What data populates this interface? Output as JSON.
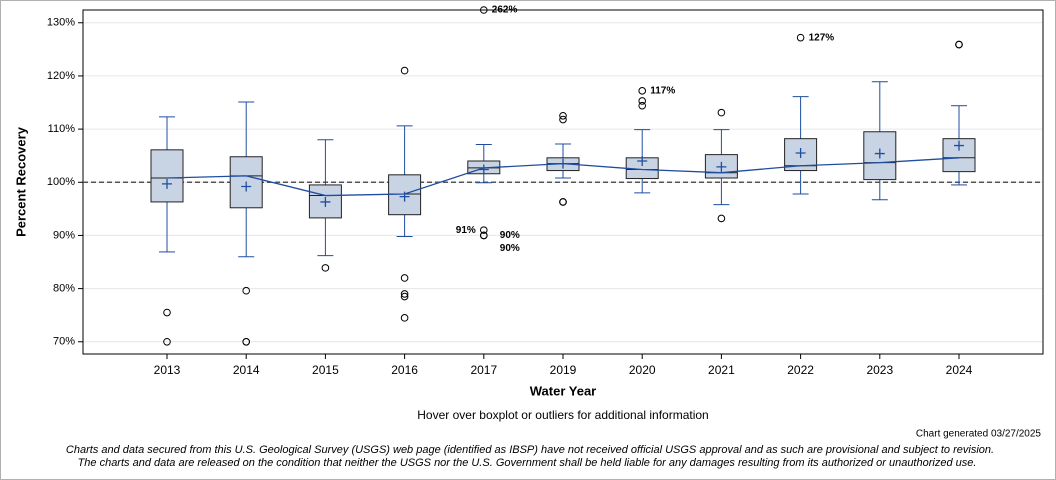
{
  "chart_data": {
    "type": "box",
    "y_label": "Percent Recovery",
    "x_label": "Water Year",
    "hover_note": "Hover over boxplot or outliers for additional information",
    "generated": "Chart generated 03/27/2025",
    "disclaimer": [
      "Charts and data secured from this U.S. Geological Survey (USGS) web page (identified as IBSP) have not received official USGS approval and as such are provisional and subject to revision.",
      "The charts and data are released on the condition that neither the USGS nor the U.S. Government shall be held liable for any damages resulting from its authorized or unauthorized use."
    ],
    "categories": [
      "2013",
      "2014",
      "2015",
      "2016",
      "2017",
      "2019",
      "2020",
      "2021",
      "2022",
      "2023",
      "2024"
    ],
    "ylim": [
      67.7,
      132.4
    ],
    "yticks": [
      {
        "value": 70,
        "label": "70%"
      },
      {
        "value": 80,
        "label": "80%"
      },
      {
        "value": 90,
        "label": "90%"
      },
      {
        "value": 100,
        "label": "100%"
      },
      {
        "value": 110,
        "label": "110%"
      },
      {
        "value": 120,
        "label": "120%"
      },
      {
        "value": 130,
        "label": "130%"
      }
    ],
    "grid": true,
    "reference_line": 100,
    "box_color": "#c8d3e4",
    "line_color": "#1f4ea0",
    "boxes": [
      {
        "whisker_low": 86.9,
        "q1": 96.3,
        "median": 100.8,
        "q3": 106.1,
        "whisker_high": 112.3,
        "mean": 99.7,
        "outliers": [
          {
            "value": 75.5
          },
          {
            "value": 70
          }
        ]
      },
      {
        "whisker_low": 86.0,
        "q1": 95.2,
        "median": 101.2,
        "q3": 104.8,
        "whisker_high": 115.1,
        "mean": 99.2,
        "outliers": [
          {
            "value": 79.6
          },
          {
            "value": 70
          },
          {
            "value": 70
          }
        ]
      },
      {
        "whisker_low": 86.2,
        "q1": 93.3,
        "median": 97.5,
        "q3": 99.5,
        "whisker_high": 108.0,
        "mean": 96.3,
        "outliers": [
          {
            "value": 83.9
          }
        ]
      },
      {
        "whisker_low": 89.8,
        "q1": 93.9,
        "median": 97.8,
        "q3": 101.4,
        "whisker_high": 110.6,
        "mean": 97.3,
        "outliers": [
          {
            "value": 121.0
          },
          {
            "value": 82.0
          },
          {
            "value": 79.0
          },
          {
            "value": 78.5
          },
          {
            "value": 74.5
          }
        ]
      },
      {
        "whisker_low": 99.9,
        "q1": 101.6,
        "median": 102.7,
        "q3": 104.0,
        "whisker_high": 107.1,
        "mean": 102.4,
        "outliers": [
          {
            "value": 262,
            "label": "262%"
          },
          {
            "value": 91,
            "label": "91%"
          },
          {
            "value": 90,
            "label": "90%"
          },
          {
            "value": 90,
            "label": "90%"
          }
        ]
      },
      {
        "whisker_low": 100.8,
        "q1": 102.2,
        "median": 103.5,
        "q3": 104.6,
        "whisker_high": 107.2,
        "mean": 103.5,
        "outliers": [
          {
            "value": 112.5
          },
          {
            "value": 111.8
          },
          {
            "value": 96.3
          },
          {
            "value": 96.3
          }
        ]
      },
      {
        "whisker_low": 98.0,
        "q1": 100.7,
        "median": 102.4,
        "q3": 104.6,
        "whisker_high": 109.9,
        "mean": 104.0,
        "outliers": [
          {
            "value": 117.2,
            "label": "117%"
          },
          {
            "value": 115.3
          },
          {
            "value": 114.4
          }
        ]
      },
      {
        "whisker_low": 95.8,
        "q1": 100.8,
        "median": 101.8,
        "q3": 105.2,
        "whisker_high": 109.9,
        "mean": 102.9,
        "outliers": [
          {
            "value": 113.1
          },
          {
            "value": 93.2
          }
        ]
      },
      {
        "whisker_low": 97.8,
        "q1": 102.2,
        "median": 103.1,
        "q3": 108.2,
        "whisker_high": 116.1,
        "mean": 105.5,
        "outliers": [
          {
            "value": 127.2,
            "label": "127%"
          }
        ]
      },
      {
        "whisker_low": 96.7,
        "q1": 100.5,
        "median": 103.7,
        "q3": 109.5,
        "whisker_high": 118.9,
        "mean": 105.4,
        "outliers": []
      },
      {
        "whisker_low": 99.5,
        "q1": 102.0,
        "median": 104.6,
        "q3": 108.2,
        "whisker_high": 114.4,
        "mean": 106.9,
        "outliers": [
          {
            "value": 125.9
          },
          {
            "value": 125.9
          }
        ]
      }
    ]
  }
}
